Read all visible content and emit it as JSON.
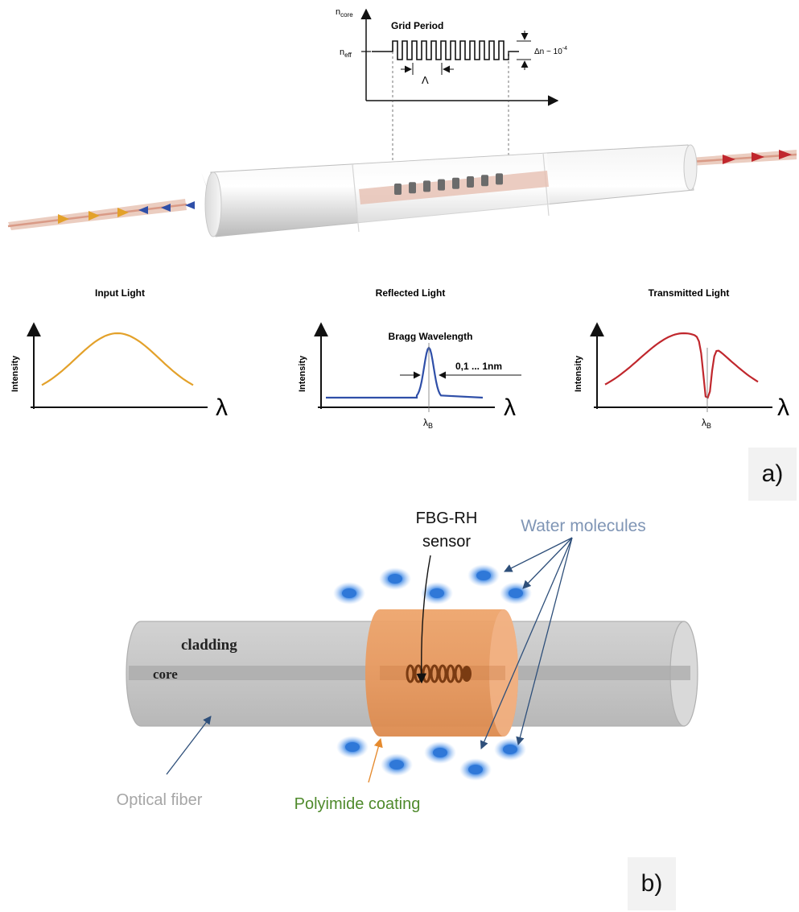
{
  "panel_a": {
    "grating_profile": {
      "y_label_top": "n",
      "y_label_top_sub": "core",
      "y_label_mid": "n",
      "y_label_mid_sub": "eff",
      "title": "Grid Period",
      "period_symbol": "Λ",
      "index_change": "Δn ~ 10",
      "index_change_exp": "-4"
    },
    "spectra": [
      {
        "title": "Input Light",
        "ylabel": "Intensity",
        "xlabel": "λ",
        "color": "#e3a12a"
      },
      {
        "title": "Reflected Light",
        "ylabel": "Intensity",
        "xlabel": "λ",
        "peak_label": "Bragg Wavelength",
        "width_label": "0,1 ... 1nm",
        "marker": "λ",
        "marker_sub": "B",
        "color": "#2f4fa8"
      },
      {
        "title": "Transmitted Light",
        "ylabel": "Intensity",
        "xlabel": "λ",
        "marker": "λ",
        "marker_sub": "B",
        "color": "#c0272d"
      }
    ],
    "tag": "a)"
  },
  "panel_b": {
    "sensor_label_line1": "FBG-RH",
    "sensor_label_line2": "sensor",
    "water_label": "Water molecules",
    "cladding_label": "cladding",
    "core_label": "core",
    "fiber_label": "Optical fiber",
    "coating_label": "Polyimide coating",
    "colors": {
      "water_label": "#7f95b5",
      "fiber_label": "#a6a6a6",
      "coating_label": "#4f8a2c",
      "coating": "#e89a60",
      "molecule": "#2f78d8"
    },
    "tag": "b)"
  }
}
